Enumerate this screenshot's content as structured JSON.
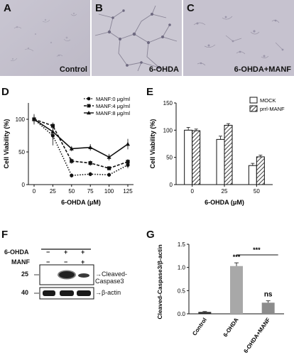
{
  "panels": {
    "A": {
      "letter": "A",
      "caption": "Control"
    },
    "B": {
      "letter": "B",
      "caption": "6-OHDA"
    },
    "C": {
      "letter": "C",
      "caption": "6-OHDA+MANF"
    },
    "D": {
      "letter": "D"
    },
    "E": {
      "letter": "E"
    },
    "F": {
      "letter": "F"
    },
    "G": {
      "letter": "G"
    }
  },
  "blot": {
    "row_labels": [
      "6-OHDA",
      "MANF"
    ],
    "row1_signs": [
      "−",
      "+",
      "+"
    ],
    "row2_signs": [
      "−",
      "−",
      "+"
    ],
    "marker_labels": [
      "25",
      "40"
    ],
    "band_labels": [
      "Cleaved-Caspase3",
      "β-actin"
    ]
  },
  "chart_data": [
    {
      "id": "D",
      "type": "line",
      "xlabel": "6-OHDA (μM)",
      "ylabel": "Cell Viability (%)",
      "x": [
        0,
        25,
        50,
        75,
        100,
        125
      ],
      "ylim": [
        0,
        125
      ],
      "yticks": [
        0,
        50,
        100
      ],
      "legend_position": "top-right",
      "series": [
        {
          "name": "MANF:0 μg/ml",
          "values": [
            100,
            75,
            14,
            16,
            15,
            30
          ],
          "marker": "circle",
          "dash": "dotted"
        },
        {
          "name": "MANF:4 μg/ml",
          "values": [
            100,
            90,
            36,
            33,
            25,
            35
          ],
          "marker": "square",
          "dash": "dashed"
        },
        {
          "name": "MANF:8 μg/ml",
          "values": [
            100,
            81,
            55,
            57,
            42,
            62
          ],
          "marker": "triangle",
          "dash": "solid"
        }
      ],
      "errors": [
        [
          8,
          15,
          3,
          3,
          3,
          5
        ],
        [
          5,
          5,
          4,
          4,
          3,
          4
        ],
        [
          6,
          12,
          4,
          5,
          5,
          8
        ]
      ]
    },
    {
      "id": "E",
      "type": "bar",
      "xlabel": "6-OHDA (μM)",
      "ylabel": "Cell Viability (%)",
      "categories": [
        "0",
        "25",
        "50"
      ],
      "ylim": [
        0,
        150
      ],
      "yticks": [
        0,
        50,
        100,
        150
      ],
      "legend_position": "top-right",
      "series": [
        {
          "name": "MOCK",
          "values": [
            100,
            83,
            35
          ],
          "errors": [
            5,
            6,
            4
          ],
          "fill": "white"
        },
        {
          "name": "prrl-MANF",
          "values": [
            99,
            109,
            51
          ],
          "errors": [
            3,
            3,
            3
          ],
          "fill": "hatched"
        }
      ]
    },
    {
      "id": "G",
      "type": "bar",
      "xlabel": "",
      "ylabel": "Cleaved-Caspase3/β-actin",
      "categories": [
        "Control",
        "6-OHDA",
        "6-OHDA+MANF"
      ],
      "values": [
        0.04,
        1.03,
        0.24
      ],
      "errors": [
        0.01,
        0.07,
        0.04
      ],
      "ylim": [
        0,
        1.5
      ],
      "yticks": [
        0.0,
        0.5,
        1.0,
        1.5
      ],
      "annotations": [
        "***",
        "ns",
        "***"
      ],
      "colors": [
        "#2a2a2a",
        "#a8a8a8",
        "#8c8c8c"
      ]
    }
  ]
}
